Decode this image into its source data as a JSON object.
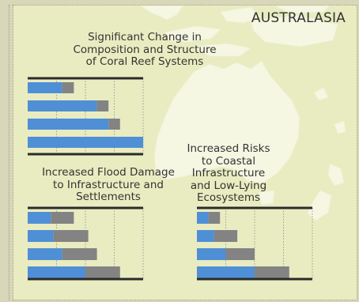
{
  "region": "AUSTRALASIA",
  "colors": {
    "panel": "#e9ecc0",
    "land": "#f5f7e2",
    "bar_primary": "#4f8fd6",
    "bar_secondary": "#838383",
    "axis": "#2b2b2b",
    "grid": "#9c9c9c"
  },
  "chart_data": [
    {
      "type": "bar",
      "orientation": "horizontal",
      "stacked": true,
      "title_lines": [
        "Significant Change in",
        "Composition and Structure",
        "of Coral Reef Systems"
      ],
      "xlim": [
        0,
        4.0
      ],
      "gridlines": [
        1,
        2,
        3,
        4
      ],
      "series": [
        {
          "values": [
            1.2,
            2.4,
            2.8,
            4.0
          ]
        },
        {
          "values": [
            0.4,
            0.4,
            0.4,
            0.0
          ]
        }
      ]
    },
    {
      "type": "bar",
      "orientation": "horizontal",
      "stacked": true,
      "title_lines": [
        "Increased Flood Damage",
        "to Infrastructure and",
        "Settlements"
      ],
      "xlim": [
        0,
        4.0
      ],
      "gridlines": [
        1,
        2,
        3,
        4
      ],
      "series": [
        {
          "values": [
            0.8,
            0.9,
            1.2,
            2.0
          ]
        },
        {
          "values": [
            0.8,
            1.2,
            1.2,
            1.2
          ]
        }
      ]
    },
    {
      "type": "bar",
      "orientation": "horizontal",
      "stacked": true,
      "title_lines": [
        "Increased Risks",
        "to Coastal",
        "Infrastructure",
        "and Low-Lying",
        "Ecosystems"
      ],
      "xlim": [
        0,
        4.0
      ],
      "gridlines": [
        1,
        2,
        3,
        4
      ],
      "series": [
        {
          "values": [
            0.4,
            0.6,
            1.0,
            2.0
          ]
        },
        {
          "values": [
            0.4,
            0.8,
            1.0,
            1.2
          ]
        }
      ]
    }
  ]
}
